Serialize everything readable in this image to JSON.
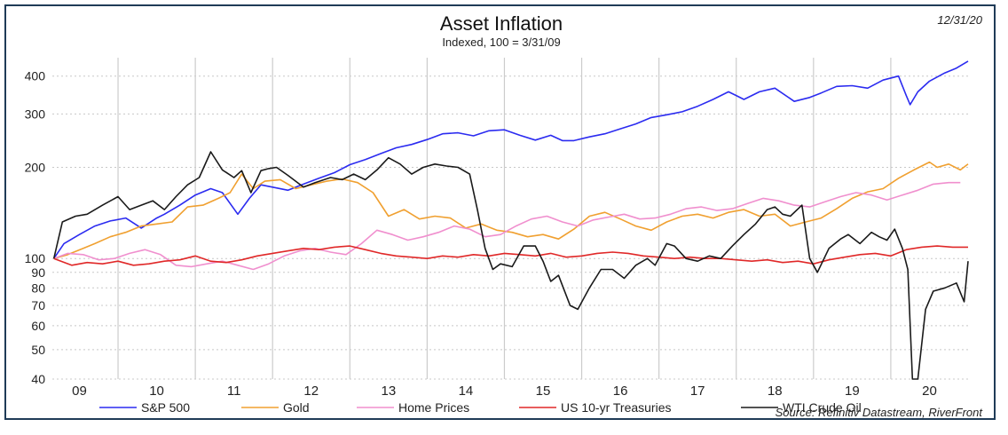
{
  "chart_data": {
    "type": "line",
    "title": "Asset Inflation",
    "subtitle": "Indexed, 100 = 3/31/09",
    "date_label": "12/31/20",
    "source": "Source: Refinitiv Datastream, RiverFront",
    "y_scale": "log",
    "ylim": [
      40,
      460
    ],
    "xlim": [
      2009.15,
      2021.0
    ],
    "y_ticks": [
      40,
      50,
      60,
      70,
      80,
      90,
      100,
      200,
      300,
      400
    ],
    "x_tick_labels": [
      {
        "label": "09",
        "x": 2009.5
      },
      {
        "label": "10",
        "x": 2010.5
      },
      {
        "label": "11",
        "x": 2011.5
      },
      {
        "label": "12",
        "x": 2012.5
      },
      {
        "label": "13",
        "x": 2013.5
      },
      {
        "label": "14",
        "x": 2014.5
      },
      {
        "label": "15",
        "x": 2015.5
      },
      {
        "label": "16",
        "x": 2016.5
      },
      {
        "label": "17",
        "x": 2017.5
      },
      {
        "label": "18",
        "x": 2018.5
      },
      {
        "label": "19",
        "x": 2019.5
      },
      {
        "label": "20",
        "x": 2020.5
      }
    ],
    "x_gridlines": [
      2010,
      2011,
      2012,
      2013,
      2014,
      2015,
      2016,
      2017,
      2018,
      2019,
      2020
    ],
    "grid": true,
    "legend_position": "bottom",
    "series": [
      {
        "name": "S&P 500",
        "color": "#2b2bf0",
        "x": [
          2009.17,
          2009.3,
          2009.5,
          2009.7,
          2009.9,
          2010.1,
          2010.3,
          2010.5,
          2010.6,
          2010.8,
          2011.0,
          2011.2,
          2011.35,
          2011.55,
          2011.7,
          2011.85,
          2012.0,
          2012.2,
          2012.4,
          2012.6,
          2012.8,
          2013.0,
          2013.2,
          2013.4,
          2013.6,
          2013.8,
          2014.0,
          2014.2,
          2014.4,
          2014.6,
          2014.8,
          2015.0,
          2015.2,
          2015.4,
          2015.6,
          2015.75,
          2015.9,
          2016.1,
          2016.3,
          2016.5,
          2016.7,
          2016.9,
          2017.1,
          2017.3,
          2017.5,
          2017.7,
          2017.9,
          2018.0,
          2018.1,
          2018.3,
          2018.5,
          2018.75,
          2018.95,
          2019.1,
          2019.3,
          2019.5,
          2019.7,
          2019.9,
          2020.1,
          2020.2,
          2020.25,
          2020.35,
          2020.5,
          2020.7,
          2020.85,
          2021.0
        ],
        "values": [
          100,
          112,
          120,
          128,
          133,
          136,
          126,
          136,
          140,
          150,
          162,
          170,
          165,
          140,
          158,
          175,
          172,
          168,
          176,
          184,
          192,
          204,
          212,
          222,
          232,
          238,
          247,
          258,
          260,
          254,
          264,
          266,
          255,
          246,
          255,
          245,
          245,
          252,
          258,
          268,
          278,
          292,
          298,
          305,
          318,
          335,
          355,
          345,
          335,
          355,
          365,
          330,
          340,
          352,
          370,
          372,
          365,
          388,
          400,
          345,
          322,
          355,
          385,
          410,
          425,
          448
        ]
      },
      {
        "name": "Gold",
        "color": "#f0a030",
        "x": [
          2009.17,
          2009.35,
          2009.55,
          2009.7,
          2009.9,
          2010.1,
          2010.3,
          2010.5,
          2010.7,
          2010.9,
          2011.1,
          2011.3,
          2011.45,
          2011.6,
          2011.75,
          2011.9,
          2012.1,
          2012.3,
          2012.5,
          2012.7,
          2012.9,
          2013.1,
          2013.3,
          2013.5,
          2013.7,
          2013.9,
          2014.1,
          2014.3,
          2014.5,
          2014.7,
          2014.9,
          2015.1,
          2015.3,
          2015.5,
          2015.7,
          2015.9,
          2016.1,
          2016.3,
          2016.5,
          2016.7,
          2016.9,
          2017.1,
          2017.3,
          2017.5,
          2017.7,
          2017.9,
          2018.1,
          2018.3,
          2018.5,
          2018.7,
          2018.9,
          2019.1,
          2019.3,
          2019.5,
          2019.7,
          2019.9,
          2020.1,
          2020.3,
          2020.5,
          2020.6,
          2020.75,
          2020.9,
          2021.0
        ],
        "values": [
          100,
          103,
          108,
          112,
          118,
          122,
          128,
          130,
          132,
          148,
          150,
          158,
          165,
          190,
          170,
          180,
          182,
          170,
          175,
          180,
          183,
          178,
          165,
          138,
          145,
          135,
          138,
          136,
          126,
          130,
          124,
          122,
          118,
          120,
          116,
          125,
          138,
          142,
          135,
          128,
          124,
          132,
          138,
          140,
          136,
          142,
          145,
          138,
          140,
          128,
          132,
          136,
          146,
          158,
          166,
          170,
          184,
          196,
          208,
          200,
          205,
          196,
          205
        ]
      },
      {
        "name": "Home Prices",
        "color": "#f08fce",
        "x": [
          2009.17,
          2009.35,
          2009.55,
          2009.75,
          2009.95,
          2010.15,
          2010.35,
          2010.55,
          2010.75,
          2010.95,
          2011.15,
          2011.35,
          2011.55,
          2011.75,
          2011.95,
          2012.15,
          2012.35,
          2012.55,
          2012.75,
          2012.95,
          2013.15,
          2013.35,
          2013.55,
          2013.75,
          2013.95,
          2014.15,
          2014.35,
          2014.55,
          2014.75,
          2014.95,
          2015.15,
          2015.35,
          2015.55,
          2015.75,
          2015.95,
          2016.15,
          2016.35,
          2016.55,
          2016.75,
          2016.95,
          2017.15,
          2017.35,
          2017.55,
          2017.75,
          2017.95,
          2018.15,
          2018.35,
          2018.55,
          2018.75,
          2018.95,
          2019.15,
          2019.35,
          2019.55,
          2019.75,
          2019.95,
          2020.15,
          2020.35,
          2020.55,
          2020.75,
          2020.9
        ],
        "values": [
          100,
          104,
          103,
          99,
          100,
          104,
          107,
          103,
          95,
          94,
          96,
          98,
          95,
          92,
          96,
          102,
          106,
          108,
          105,
          103,
          112,
          124,
          120,
          115,
          118,
          122,
          128,
          125,
          118,
          120,
          128,
          135,
          138,
          132,
          128,
          134,
          137,
          140,
          135,
          136,
          140,
          146,
          148,
          144,
          146,
          152,
          158,
          155,
          150,
          148,
          154,
          160,
          165,
          162,
          156,
          162,
          168,
          176,
          178,
          178
        ]
      },
      {
        "name": "US 10-yr Treasuries",
        "color": "#e02828",
        "x": [
          2009.17,
          2009.4,
          2009.6,
          2009.8,
          2010.0,
          2010.2,
          2010.4,
          2010.6,
          2010.8,
          2011.0,
          2011.2,
          2011.4,
          2011.6,
          2011.8,
          2012.0,
          2012.2,
          2012.4,
          2012.6,
          2012.8,
          2013.0,
          2013.2,
          2013.4,
          2013.6,
          2013.8,
          2014.0,
          2014.2,
          2014.4,
          2014.6,
          2014.8,
          2015.0,
          2015.2,
          2015.4,
          2015.6,
          2015.8,
          2016.0,
          2016.2,
          2016.4,
          2016.6,
          2016.8,
          2017.0,
          2017.2,
          2017.4,
          2017.6,
          2017.8,
          2018.0,
          2018.2,
          2018.4,
          2018.6,
          2018.8,
          2019.0,
          2019.2,
          2019.4,
          2019.6,
          2019.8,
          2020.0,
          2020.2,
          2020.4,
          2020.6,
          2020.8,
          2021.0
        ],
        "values": [
          100,
          95,
          97,
          96,
          98,
          95,
          96,
          98,
          99,
          102,
          98,
          97,
          99,
          102,
          104,
          106,
          108,
          107,
          109,
          110,
          107,
          104,
          102,
          101,
          100,
          102,
          101,
          103,
          102,
          104,
          103,
          102,
          104,
          101,
          102,
          104,
          105,
          104,
          102,
          101,
          100,
          101,
          100,
          100,
          99,
          98,
          99,
          97,
          98,
          96,
          99,
          101,
          103,
          104,
          102,
          107,
          109,
          110,
          109,
          109
        ]
      },
      {
        "name": "WTI Crude Oil",
        "color": "#1a1a1a",
        "x": [
          2009.17,
          2009.28,
          2009.45,
          2009.6,
          2009.8,
          2010.0,
          2010.15,
          2010.3,
          2010.45,
          2010.6,
          2010.75,
          2010.9,
          2011.05,
          2011.2,
          2011.35,
          2011.5,
          2011.6,
          2011.72,
          2011.85,
          2011.95,
          2012.05,
          2012.2,
          2012.4,
          2012.55,
          2012.75,
          2012.9,
          2013.05,
          2013.2,
          2013.35,
          2013.5,
          2013.65,
          2013.8,
          2013.95,
          2014.1,
          2014.25,
          2014.4,
          2014.55,
          2014.65,
          2014.75,
          2014.85,
          2014.95,
          2015.1,
          2015.25,
          2015.4,
          2015.5,
          2015.6,
          2015.7,
          2015.85,
          2015.95,
          2016.1,
          2016.25,
          2016.4,
          2016.55,
          2016.7,
          2016.85,
          2016.95,
          2017.1,
          2017.2,
          2017.35,
          2017.5,
          2017.65,
          2017.8,
          2017.95,
          2018.1,
          2018.25,
          2018.4,
          2018.5,
          2018.6,
          2018.7,
          2018.85,
          2018.95,
          2019.05,
          2019.2,
          2019.35,
          2019.45,
          2019.6,
          2019.75,
          2019.85,
          2019.95,
          2020.05,
          2020.15,
          2020.22,
          2020.28,
          2020.35,
          2020.45,
          2020.55,
          2020.7,
          2020.85,
          2020.95,
          2021.0
        ],
        "values": [
          100,
          132,
          138,
          140,
          150,
          160,
          145,
          150,
          155,
          145,
          160,
          175,
          185,
          225,
          196,
          185,
          195,
          165,
          195,
          198,
          200,
          188,
          172,
          178,
          185,
          182,
          190,
          182,
          196,
          215,
          205,
          190,
          200,
          205,
          202,
          200,
          190,
          145,
          108,
          92,
          96,
          94,
          110,
          110,
          98,
          84,
          88,
          70,
          68,
          80,
          92,
          92,
          86,
          95,
          100,
          95,
          112,
          110,
          100,
          98,
          102,
          100,
          110,
          120,
          130,
          145,
          148,
          140,
          138,
          150,
          100,
          90,
          108,
          116,
          120,
          112,
          122,
          118,
          115,
          125,
          108,
          92,
          40,
          40,
          68,
          78,
          80,
          83,
          72,
          98
        ]
      }
    ]
  }
}
